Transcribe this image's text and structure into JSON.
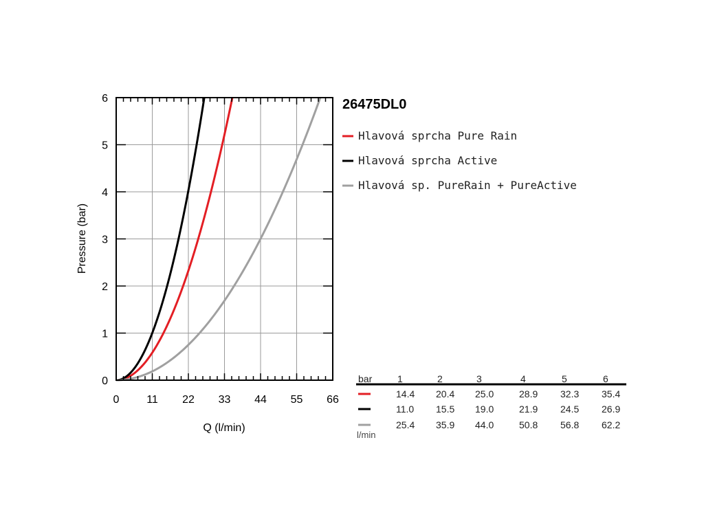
{
  "chart_data": {
    "type": "line",
    "title": "26475DL0",
    "xlabel": "Q (l/min)",
    "ylabel": "Pressure (bar)",
    "xlim": [
      0,
      66
    ],
    "ylim": [
      0,
      6
    ],
    "x_ticks": [
      "0",
      "11",
      "22",
      "33",
      "44",
      "55",
      "66"
    ],
    "y_ticks": [
      "0",
      "1",
      "2",
      "3",
      "4",
      "5",
      "6"
    ],
    "grid": true,
    "legend_position": "right",
    "series": [
      {
        "name": "Hlavová sprcha Pure Rain",
        "color": "#e31e24",
        "x": [
          0,
          14.4,
          20.4,
          25.0,
          28.9,
          32.3,
          35.4
        ],
        "y": [
          0,
          1,
          2,
          3,
          4,
          5,
          6
        ]
      },
      {
        "name": "Hlavová sprcha Active",
        "color": "#000000",
        "x": [
          0,
          11.0,
          15.5,
          19.0,
          21.9,
          24.5,
          26.9
        ],
        "y": [
          0,
          1,
          2,
          3,
          4,
          5,
          6
        ]
      },
      {
        "name": "Hlavová sp. PureRain + PureActive",
        "color": "#a0a0a0",
        "x": [
          0,
          25.4,
          35.9,
          44.0,
          50.8,
          56.8,
          62.2
        ],
        "y": [
          0,
          1,
          2,
          3,
          4,
          5,
          6
        ]
      }
    ]
  },
  "table": {
    "header_label": "bar",
    "columns": [
      "1",
      "2",
      "3",
      "4",
      "5",
      "6"
    ],
    "rows": [
      {
        "color": "#e31e24",
        "values": [
          "14.4",
          "20.4",
          "25.0",
          "28.9",
          "32.3",
          "35.4"
        ]
      },
      {
        "color": "#000000",
        "values": [
          "11.0",
          "15.5",
          "19.0",
          "21.9",
          "24.5",
          "26.9"
        ]
      },
      {
        "color": "#a0a0a0",
        "values": [
          "25.4",
          "35.9",
          "44.0",
          "50.8",
          "56.8",
          "62.2"
        ]
      }
    ],
    "unit_label": "l/min"
  }
}
